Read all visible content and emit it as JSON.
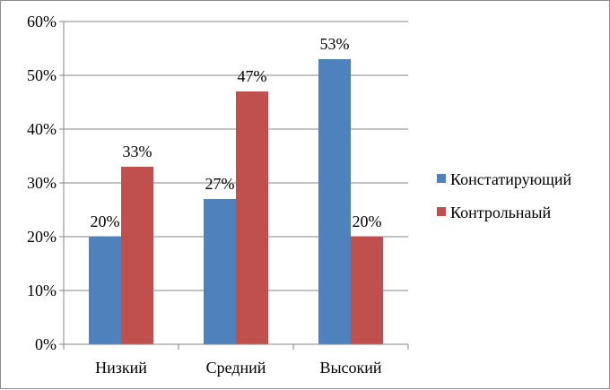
{
  "chart_data": {
    "type": "bar",
    "categories": [
      "Низкий",
      "Средний",
      "Высокий"
    ],
    "series": [
      {
        "name": "Констатирующий",
        "values": [
          20,
          27,
          53
        ],
        "labels": [
          "20%",
          "27%",
          "53%"
        ],
        "color": "#4f81bd"
      },
      {
        "name": "Контрольнаый",
        "values": [
          33,
          47,
          20
        ],
        "labels": [
          "33%",
          "47%",
          "20%"
        ],
        "color": "#c0504d"
      }
    ],
    "ylim": [
      0,
      60
    ],
    "yticks": [
      {
        "value": 0,
        "label": "0%"
      },
      {
        "value": 10,
        "label": "10%"
      },
      {
        "value": 20,
        "label": "20%"
      },
      {
        "value": 30,
        "label": "30%"
      },
      {
        "value": 40,
        "label": "40%"
      },
      {
        "value": 50,
        "label": "50%"
      },
      {
        "value": 60,
        "label": "60%"
      }
    ],
    "grid": true,
    "legend_position": "right",
    "title": "",
    "xlabel": "",
    "ylabel": ""
  }
}
